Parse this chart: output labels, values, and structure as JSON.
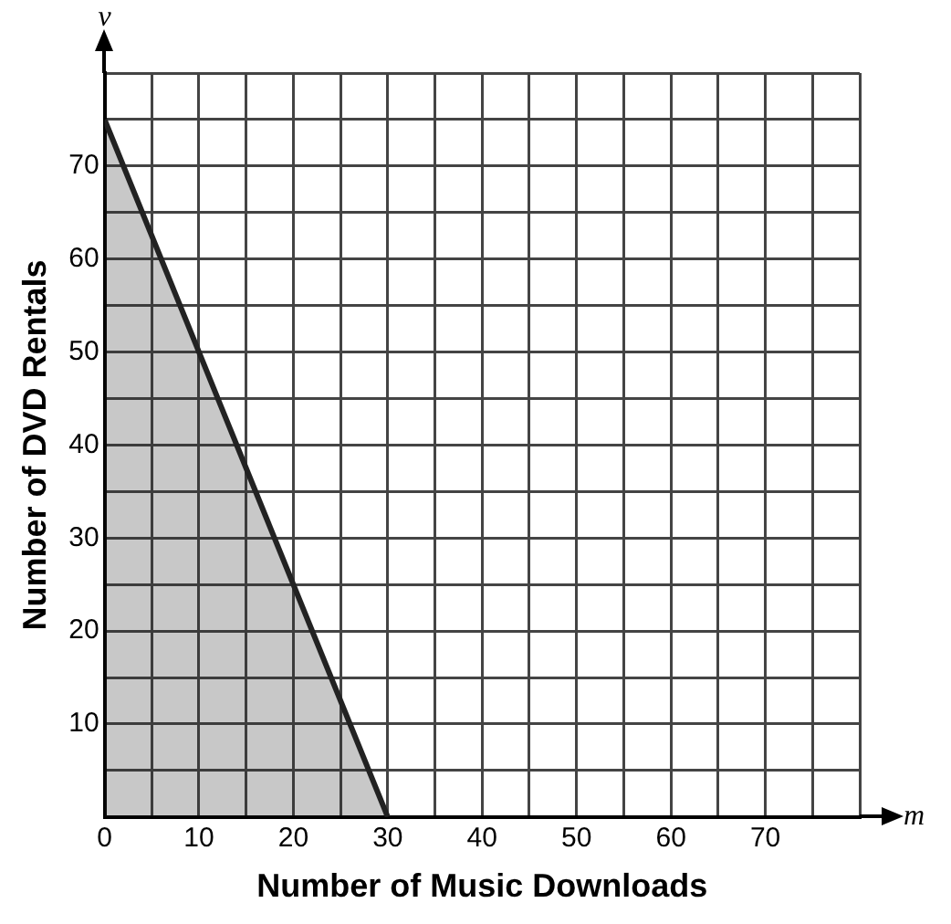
{
  "chart_data": {
    "type": "area",
    "xlabel": "Number of Music Downloads",
    "ylabel": "Number of DVD Rentals",
    "annotations": [
      "v",
      "m"
    ],
    "x": [
      0,
      30
    ],
    "series": [
      {
        "color": "#222222",
        "values": [
          75,
          0
        ]
      }
    ],
    "xlim": [
      0,
      80
    ],
    "ylim": [
      0,
      80
    ],
    "xticks": [
      {
        "value": 0,
        "label": "0"
      },
      {
        "value": 5,
        "label": null
      },
      10,
      {
        "value": 15,
        "label": null
      },
      20,
      {
        "value": 25,
        "label": null
      },
      30,
      {
        "value": 35,
        "label": null
      },
      40,
      {
        "value": 45,
        "label": null
      },
      50,
      {
        "value": 55,
        "label": null
      },
      60,
      {
        "value": 65,
        "label": null
      },
      70,
      {
        "value": 75,
        "label": null
      },
      {
        "value": 80,
        "label": null
      }
    ],
    "yticks": [
      {
        "value": 0,
        "label": null
      },
      {
        "value": 5,
        "label": null
      },
      10,
      {
        "value": 15,
        "label": null
      },
      20,
      {
        "value": 25,
        "label": null
      },
      30,
      {
        "value": 35,
        "label": null
      },
      40,
      {
        "value": 45,
        "label": null
      },
      50,
      {
        "value": 55,
        "label": null
      },
      60,
      {
        "value": 65,
        "label": null
      },
      70,
      {
        "value": 75,
        "label": null
      },
      {
        "value": 80,
        "label": null
      }
    ],
    "grid": true,
    "legend": false,
    "marker": "none",
    "line_style": "solid"
  }
}
